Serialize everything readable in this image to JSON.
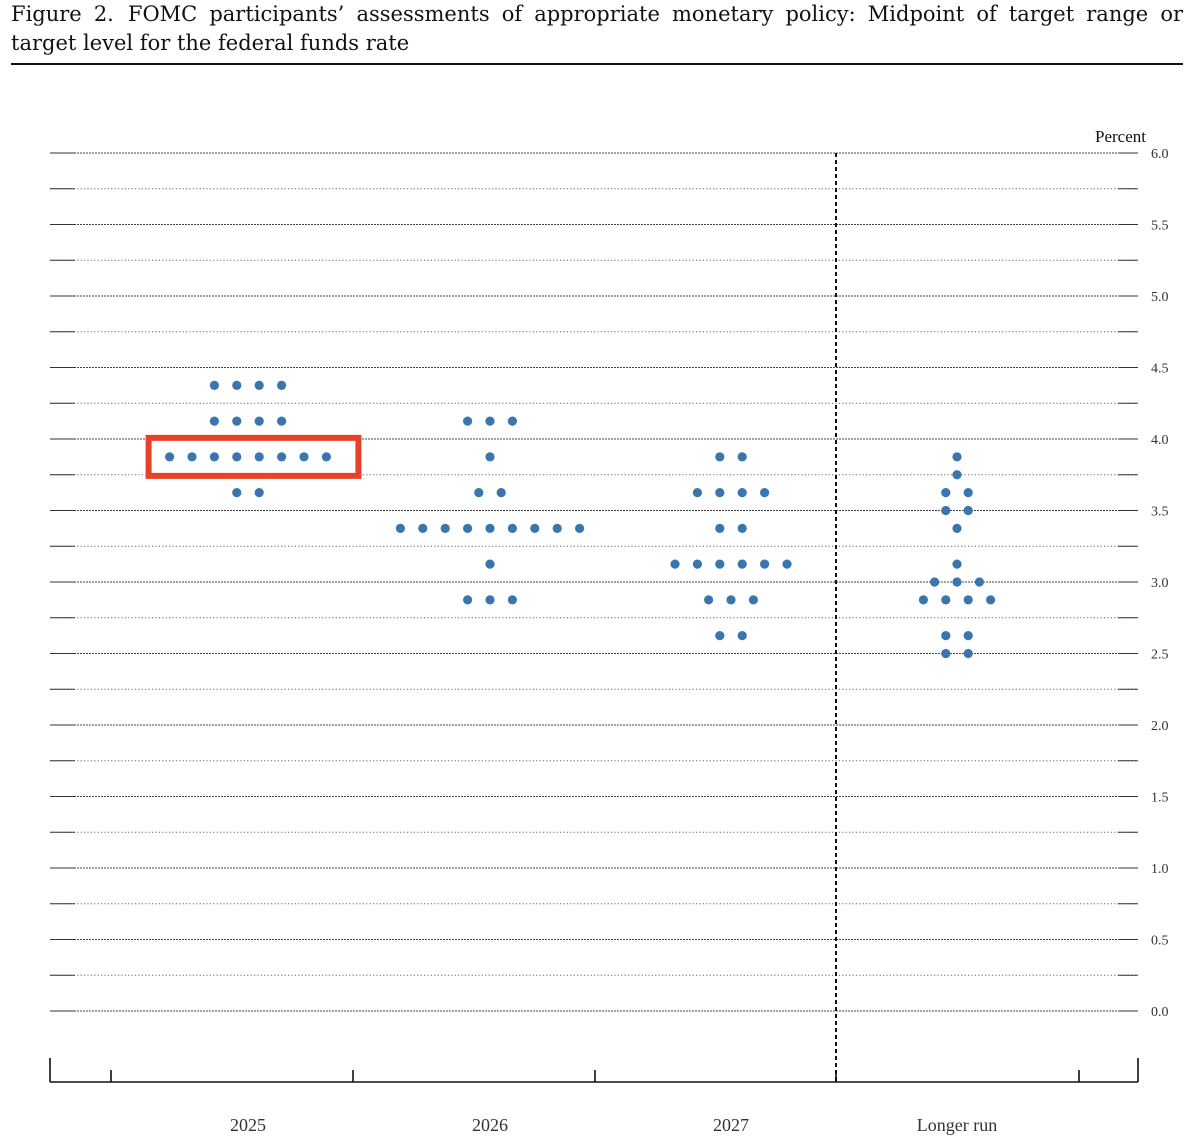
{
  "figure": {
    "label": "Figure 2.",
    "title": "FOMC participants’ assessments of appropriate monetary policy: Midpoint of target range or target level for the federal funds rate"
  },
  "chart_data": {
    "type": "scatter",
    "title": "FOMC participants’ assessments of appropriate monetary policy: Midpoint of target range or target level for the federal funds rate",
    "ylabel": "Percent",
    "xlabel": "",
    "ylim": [
      0,
      6
    ],
    "y_ticks": [
      "6.0",
      "5.5",
      "5.0",
      "4.5",
      "4.0",
      "3.5",
      "3.0",
      "2.5",
      "2.0",
      "1.5",
      "1.0",
      "0.5",
      "0.0"
    ],
    "categories": [
      "2025",
      "2026",
      "2027",
      "Longer run"
    ],
    "grid": true,
    "dot_color": "#3a76ad",
    "highlight_color": "#e8402a",
    "highlight": {
      "category": "2025",
      "y": 3.875
    },
    "series": [
      {
        "category": "2025",
        "points": [
          {
            "y": 4.375,
            "count": 4
          },
          {
            "y": 4.125,
            "count": 4
          },
          {
            "y": 3.875,
            "count": 8
          },
          {
            "y": 3.625,
            "count": 2
          }
        ]
      },
      {
        "category": "2026",
        "points": [
          {
            "y": 4.125,
            "count": 3
          },
          {
            "y": 3.875,
            "count": 1
          },
          {
            "y": 3.625,
            "count": 2
          },
          {
            "y": 3.375,
            "count": 9
          },
          {
            "y": 3.125,
            "count": 1
          },
          {
            "y": 2.875,
            "count": 3
          }
        ]
      },
      {
        "category": "2027",
        "points": [
          {
            "y": 3.875,
            "count": 2
          },
          {
            "y": 3.625,
            "count": 4
          },
          {
            "y": 3.375,
            "count": 2
          },
          {
            "y": 3.125,
            "count": 6
          },
          {
            "y": 2.875,
            "count": 3
          },
          {
            "y": 2.625,
            "count": 2
          }
        ]
      },
      {
        "category": "Longer run",
        "points": [
          {
            "y": 3.875,
            "count": 1
          },
          {
            "y": 3.75,
            "count": 1
          },
          {
            "y": 3.625,
            "count": 2
          },
          {
            "y": 3.5,
            "count": 2
          },
          {
            "y": 3.375,
            "count": 1
          },
          {
            "y": 3.125,
            "count": 1
          },
          {
            "y": 3.0,
            "count": 3
          },
          {
            "y": 2.875,
            "count": 4
          },
          {
            "y": 2.625,
            "count": 2
          },
          {
            "y": 2.5,
            "count": 2
          }
        ]
      }
    ]
  }
}
